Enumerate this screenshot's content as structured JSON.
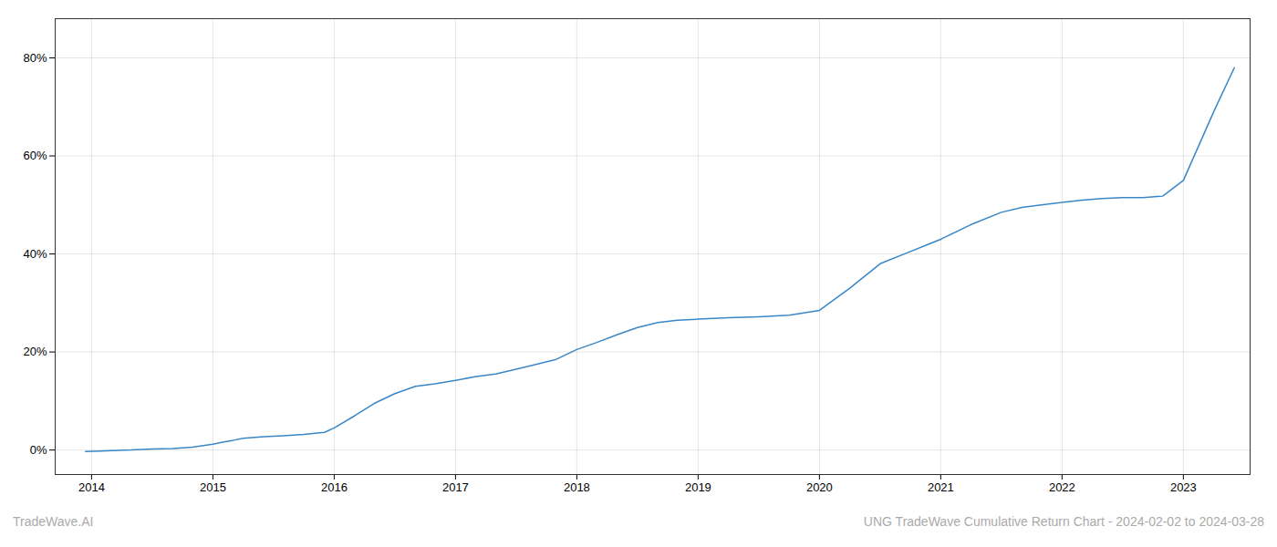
{
  "chart_data": {
    "type": "line",
    "annotations": [
      "TradeWave.AI",
      "UNG TradeWave Cumulative Return Chart - 2024-02-02 to 2024-03-28"
    ],
    "color": "#3a87c8",
    "grid": true,
    "x": [
      2013.95,
      2014.08,
      2014.17,
      2014.33,
      2014.5,
      2014.67,
      2014.83,
      2015.0,
      2015.08,
      2015.17,
      2015.25,
      2015.42,
      2015.58,
      2015.75,
      2015.92,
      2016.0,
      2016.17,
      2016.33,
      2016.5,
      2016.67,
      2016.83,
      2017.0,
      2017.17,
      2017.33,
      2017.5,
      2017.67,
      2017.83,
      2018.0,
      2018.17,
      2018.33,
      2018.5,
      2018.67,
      2018.83,
      2019.0,
      2019.25,
      2019.5,
      2019.75,
      2020.0,
      2020.25,
      2020.5,
      2020.75,
      2021.0,
      2021.25,
      2021.5,
      2021.67,
      2021.83,
      2022.0,
      2022.17,
      2022.33,
      2022.5,
      2022.67,
      2022.83,
      2023.0,
      2023.25,
      2023.42
    ],
    "values": [
      -0.3,
      -0.2,
      -0.1,
      0.0,
      0.2,
      0.3,
      0.6,
      1.2,
      1.6,
      2.0,
      2.4,
      2.7,
      2.9,
      3.2,
      3.6,
      4.5,
      7.0,
      9.5,
      11.5,
      13.0,
      13.5,
      14.2,
      15.0,
      15.5,
      16.5,
      17.5,
      18.5,
      20.5,
      22.0,
      23.5,
      25.0,
      26.0,
      26.5,
      26.7,
      27.0,
      27.2,
      27.5,
      28.5,
      33.0,
      38.0,
      40.5,
      43.0,
      46.0,
      48.5,
      49.5,
      50.0,
      50.5,
      51.0,
      51.3,
      51.5,
      51.5,
      51.8,
      55.0,
      69.0,
      78.0
    ],
    "xlim": [
      2013.7,
      2023.55
    ],
    "xticks": [
      2014,
      2015,
      2016,
      2017,
      2018,
      2019,
      2020,
      2021,
      2022,
      2023
    ],
    "ylim": [
      -5,
      88
    ],
    "yticks": [
      {
        "value": 0,
        "label": "0%"
      },
      {
        "value": 20,
        "label": "20%"
      },
      {
        "value": 40,
        "label": "40%"
      },
      {
        "value": 60,
        "label": "60%"
      },
      {
        "value": 80,
        "label": "80%"
      }
    ]
  }
}
